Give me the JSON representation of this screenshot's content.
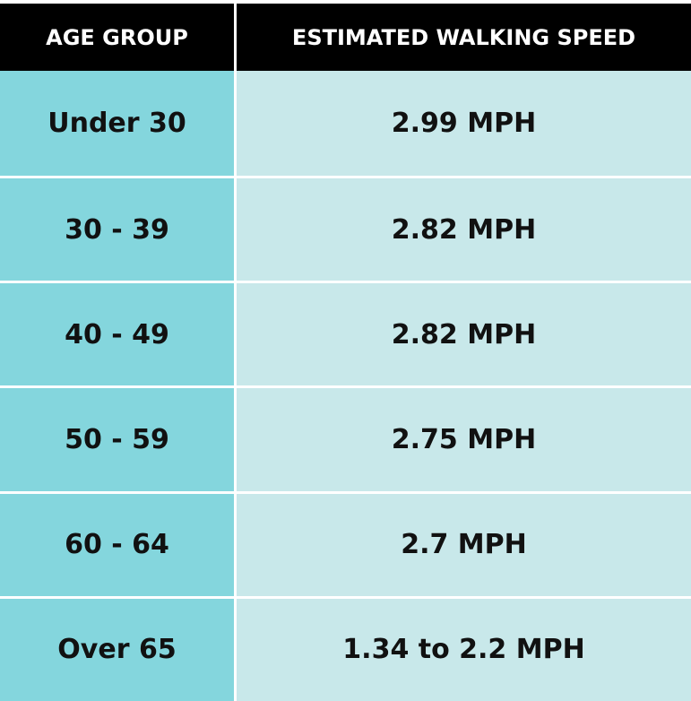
{
  "table": {
    "header": [
      "AGE GROUP",
      "ESTIMATED WALKING SPEED"
    ],
    "rows": [
      [
        "Under 30",
        "2.99 MPH"
      ],
      [
        "30 - 39",
        "2.82 MPH"
      ],
      [
        "40 - 49",
        "2.82 MPH"
      ],
      [
        "50 - 59",
        "2.75 MPH"
      ],
      [
        "60 - 64",
        "2.7 MPH"
      ],
      [
        "Over 65",
        "1.34 to 2.2 MPH"
      ]
    ]
  }
}
